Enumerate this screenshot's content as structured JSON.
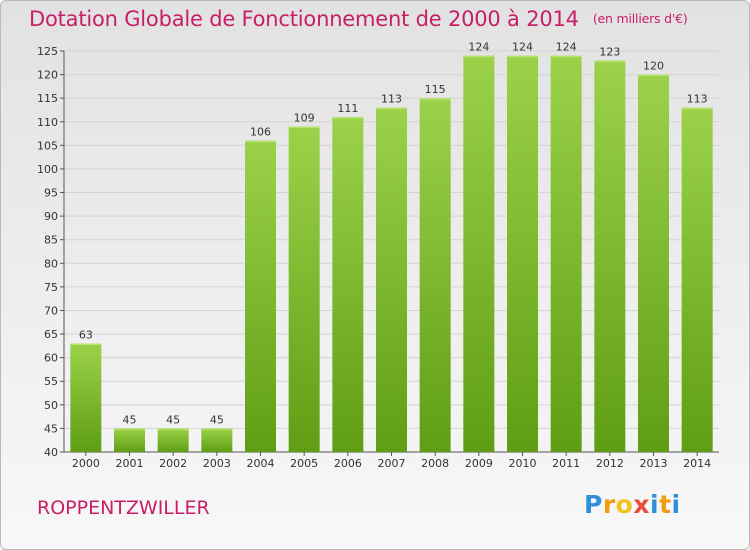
{
  "header": {
    "title": "Dotation Globale de Fonctionnement de 2000 à 2014",
    "unit": "(en milliers d'€)"
  },
  "footer": {
    "commune": "ROPPENTZWILLER",
    "brand": [
      "P",
      "r",
      "o",
      "x",
      "i",
      "t",
      "i"
    ]
  },
  "colors": {
    "title": "#c71f67",
    "bar_light": "#9bd24a",
    "bar_dark": "#5f9e14",
    "grid": "#d4d4d4",
    "brand_letters": [
      "#2f8fd8",
      "#f39c12",
      "#f0c419",
      "#e74c3c",
      "#2f8fd8",
      "#f39c12",
      "#2f8fd8"
    ]
  },
  "chart_data": {
    "type": "bar",
    "title": "Dotation Globale de Fonctionnement de 2000 à 2014",
    "subtitle": "(en milliers d'€)",
    "xlabel": "",
    "ylabel": "",
    "categories": [
      "2000",
      "2001",
      "2002",
      "2003",
      "2004",
      "2005",
      "2006",
      "2007",
      "2008",
      "2009",
      "2010",
      "2011",
      "2012",
      "2013",
      "2014"
    ],
    "values": [
      63,
      45,
      45,
      45,
      106,
      109,
      111,
      113,
      115,
      124,
      124,
      124,
      123,
      120,
      113
    ],
    "data_labels": [
      "63",
      "45",
      "45",
      "45",
      "106",
      "109",
      "111",
      "113",
      "115",
      "124",
      "124",
      "124",
      "123",
      "120",
      "113"
    ],
    "ylim": [
      40,
      125
    ],
    "yticks": [
      "40",
      "45",
      "50",
      "55",
      "60",
      "65",
      "70",
      "75",
      "80",
      "85",
      "90",
      "95",
      "100",
      "105",
      "110",
      "115",
      "120",
      "125"
    ],
    "grid": true,
    "legend": "none"
  }
}
